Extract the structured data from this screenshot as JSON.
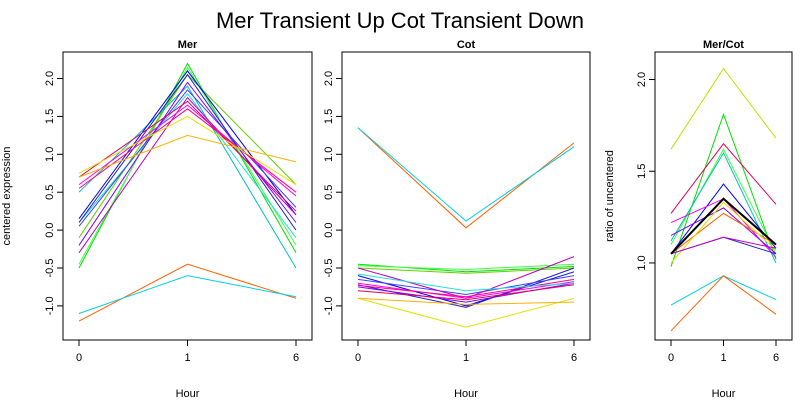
{
  "figure": {
    "title": "Mer Transient Up Cot Transient Down"
  },
  "chart_data": [
    {
      "type": "line",
      "title": "Mer",
      "xlabel": "Hour",
      "ylabel": "centered expression",
      "categories": [
        "0",
        "1",
        "6"
      ],
      "ylim": [
        -1.45,
        2.35
      ],
      "yticks": [
        -1.0,
        -0.5,
        0.0,
        0.5,
        1.0,
        1.5,
        2.0
      ],
      "ytick_labels": [
        "-1.0",
        "-0.5",
        "0.0",
        "0.5",
        "1.0",
        "1.5",
        "2.0"
      ],
      "series": [
        {
          "color": "#00e000",
          "values": [
            -0.5,
            2.2,
            -0.3
          ]
        },
        {
          "color": "#40ff40",
          "values": [
            -0.45,
            2.15,
            -0.2
          ]
        },
        {
          "color": "#60d000",
          "values": [
            -0.1,
            2.05,
            0.6
          ]
        },
        {
          "color": "#00c0c0",
          "values": [
            0.5,
            1.9,
            -0.5
          ]
        },
        {
          "color": "#20e0e0",
          "values": [
            0.1,
            1.8,
            -0.1
          ]
        },
        {
          "color": "#0000ff",
          "values": [
            0.15,
            2.1,
            0.2
          ]
        },
        {
          "color": "#2020c0",
          "values": [
            0.1,
            2.05,
            0.0
          ]
        },
        {
          "color": "#4040ff",
          "values": [
            0.05,
            1.85,
            0.3
          ]
        },
        {
          "color": "#8000ff",
          "values": [
            -0.2,
            1.95,
            0.1
          ]
        },
        {
          "color": "#c000c0",
          "values": [
            -0.3,
            1.75,
            0.2
          ]
        },
        {
          "color": "#ff00ff",
          "values": [
            0.6,
            1.65,
            0.45
          ]
        },
        {
          "color": "#e00060",
          "values": [
            0.7,
            1.7,
            0.25
          ]
        },
        {
          "color": "#ff0080",
          "values": [
            0.55,
            1.6,
            0.5
          ]
        },
        {
          "color": "#e0e000",
          "values": [
            0.75,
            1.5,
            0.6
          ]
        },
        {
          "color": "#ffb000",
          "values": [
            0.7,
            1.25,
            0.9
          ]
        },
        {
          "color": "#ff6000",
          "values": [
            -1.2,
            -0.45,
            -0.9
          ]
        },
        {
          "color": "#00d0e0",
          "values": [
            -1.1,
            -0.6,
            -0.88
          ]
        }
      ]
    },
    {
      "type": "line",
      "title": "Cot",
      "xlabel": "Hour",
      "ylabel": "",
      "categories": [
        "0",
        "1",
        "6"
      ],
      "ylim": [
        -1.45,
        2.35
      ],
      "yticks": [
        -1.0,
        -0.5,
        0.0,
        0.5,
        1.0,
        1.5,
        2.0
      ],
      "ytick_labels": [
        "-1.0",
        "-0.5",
        "0.0",
        "0.5",
        "1.0",
        "1.5",
        "2.0"
      ],
      "series": [
        {
          "color": "#ff6000",
          "values": [
            1.35,
            0.03,
            1.15
          ]
        },
        {
          "color": "#00d0e0",
          "values": [
            1.35,
            0.12,
            1.1
          ]
        },
        {
          "color": "#00e000",
          "values": [
            -0.45,
            -0.55,
            -0.48
          ]
        },
        {
          "color": "#40ff40",
          "values": [
            -0.47,
            -0.52,
            -0.45
          ]
        },
        {
          "color": "#60d000",
          "values": [
            -0.5,
            -0.57,
            -0.5
          ]
        },
        {
          "color": "#0000ff",
          "values": [
            -0.6,
            -1.0,
            -0.55
          ]
        },
        {
          "color": "#2020c0",
          "values": [
            -0.72,
            -1.02,
            -0.5
          ]
        },
        {
          "color": "#4040ff",
          "values": [
            -0.65,
            -0.85,
            -0.6
          ]
        },
        {
          "color": "#8000ff",
          "values": [
            -0.75,
            -0.95,
            -0.7
          ]
        },
        {
          "color": "#c000c0",
          "values": [
            -0.5,
            -0.9,
            -0.35
          ]
        },
        {
          "color": "#ff00ff",
          "values": [
            -0.7,
            -0.9,
            -0.68
          ]
        },
        {
          "color": "#e00060",
          "values": [
            -0.8,
            -0.92,
            -0.72
          ]
        },
        {
          "color": "#ff0080",
          "values": [
            -0.73,
            -0.88,
            -0.65
          ]
        },
        {
          "color": "#20e0e0",
          "values": [
            -0.58,
            -0.8,
            -0.7
          ]
        },
        {
          "color": "#e0e000",
          "values": [
            -0.9,
            -1.28,
            -0.9
          ]
        },
        {
          "color": "#ffb000",
          "values": [
            -0.9,
            -0.98,
            -0.95
          ]
        }
      ]
    },
    {
      "type": "line",
      "title": "Mer/Cot",
      "xlabel": "Hour",
      "ylabel": "ratio of uncentered",
      "categories": [
        "0",
        "1",
        "6"
      ],
      "ylim": [
        0.58,
        2.15
      ],
      "yticks": [
        1.0,
        1.5,
        2.0
      ],
      "ytick_labels": [
        "1.0",
        "1.5",
        "2.0"
      ],
      "series": [
        {
          "color": "#c0e000",
          "values": [
            1.62,
            2.06,
            1.68
          ]
        },
        {
          "color": "#00e000",
          "values": [
            0.98,
            1.81,
            1.02
          ]
        },
        {
          "color": "#40ff40",
          "values": [
            1.1,
            1.62,
            1.05
          ]
        },
        {
          "color": "#00c0c0",
          "values": [
            1.12,
            1.6,
            1.0
          ]
        },
        {
          "color": "#e00060",
          "values": [
            1.27,
            1.65,
            1.32
          ]
        },
        {
          "color": "#0000ff",
          "values": [
            1.05,
            1.43,
            1.08
          ]
        },
        {
          "color": "#ff00ff",
          "values": [
            1.22,
            1.35,
            1.03
          ]
        },
        {
          "color": "#8000ff",
          "values": [
            1.15,
            1.3,
            1.05
          ]
        },
        {
          "color": "#ff6000",
          "values": [
            1.05,
            1.27,
            1.1
          ]
        },
        {
          "color": "#e0e000",
          "values": [
            1.0,
            1.33,
            1.07
          ]
        },
        {
          "color": "#2020c0",
          "values": [
            1.05,
            1.14,
            1.05
          ]
        },
        {
          "color": "#c000c0",
          "values": [
            1.05,
            1.14,
            1.08
          ]
        },
        {
          "color": "#000000",
          "values": [
            1.05,
            1.35,
            1.1
          ]
        },
        {
          "color": "#00d0e0",
          "values": [
            0.77,
            0.93,
            0.8
          ]
        },
        {
          "color": "#ff6000",
          "values": [
            0.63,
            0.93,
            0.72
          ]
        }
      ]
    }
  ]
}
